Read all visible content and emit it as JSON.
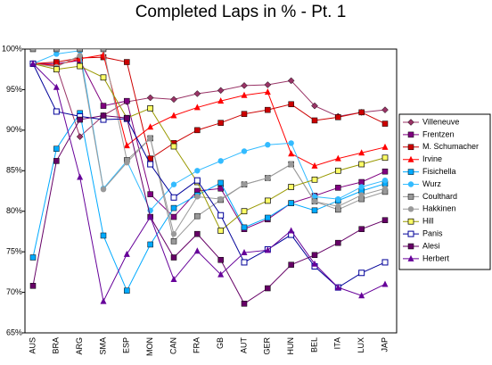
{
  "chart_data": {
    "type": "line",
    "title": "Completed Laps in % - Pt. 1",
    "categories": [
      "AUS",
      "BRA",
      "ARG",
      "SMA",
      "ESP",
      "MON",
      "CAN",
      "FRA",
      "GB",
      "AUT",
      "GER",
      "HUN",
      "BEL",
      "ITA",
      "LUX",
      "JAP"
    ],
    "ylim": [
      65,
      100
    ],
    "yticks": [
      {
        "value": 65,
        "label": "65%"
      },
      {
        "value": 70,
        "label": "70%"
      },
      {
        "value": 75,
        "label": "75%"
      },
      {
        "value": 80,
        "label": "80%"
      },
      {
        "value": 85,
        "label": "85%"
      },
      {
        "value": 90,
        "label": "90%"
      },
      {
        "value": 95,
        "label": "95%"
      },
      {
        "value": 100,
        "label": "100%"
      }
    ],
    "grid": false,
    "legend": "right",
    "series": [
      {
        "name": "Villeneuve",
        "color": "#993366",
        "marker": "diamond",
        "values": [
          98.2,
          97.9,
          89.2,
          91.8,
          93.5,
          94.0,
          93.8,
          94.5,
          94.9,
          95.5,
          95.6,
          96.1,
          93.0,
          91.7,
          92.2,
          92.5
        ]
      },
      {
        "name": "Frentzen",
        "color": "#800080",
        "marker": "square",
        "values": [
          98.2,
          98.2,
          98.6,
          93.0,
          93.6,
          82.1,
          79.3,
          82.5,
          82.8,
          77.8,
          79.0,
          81.0,
          81.9,
          82.9,
          83.6,
          84.9
        ]
      },
      {
        "name": "M. Schumacher",
        "color": "#cc0000",
        "marker": "square",
        "values": [
          98.2,
          98.4,
          98.9,
          99.0,
          98.4,
          86.5,
          88.4,
          90.0,
          90.9,
          92.0,
          92.5,
          93.2,
          91.2,
          91.6,
          92.2,
          90.8
        ]
      },
      {
        "name": "Irvine",
        "color": "#ff0000",
        "marker": "triangle",
        "values": [
          98.2,
          98.0,
          98.8,
          99.3,
          88.1,
          90.4,
          91.8,
          92.8,
          93.6,
          94.3,
          94.7,
          87.1,
          85.6,
          86.5,
          87.2,
          87.9
        ]
      },
      {
        "name": "Fisichella",
        "color": "#00aaff",
        "marker": "square",
        "values": [
          74.3,
          87.7,
          92.1,
          77.0,
          70.2,
          75.9,
          80.4,
          82.0,
          83.5,
          78.0,
          79.2,
          81.0,
          80.1,
          81.3,
          82.5,
          83.4
        ]
      },
      {
        "name": "Wurz",
        "color": "#33bbff",
        "marker": "circle",
        "values": [
          98.2,
          99.4,
          99.8,
          82.8,
          86.2,
          80.1,
          83.3,
          85.0,
          86.2,
          87.4,
          88.2,
          88.4,
          81.8,
          81.5,
          83.0,
          83.8
        ]
      },
      {
        "name": "Coulthard",
        "color": "#999999",
        "marker": "square",
        "values": [
          100,
          100,
          100,
          100,
          86.3,
          89.0,
          76.3,
          79.4,
          81.4,
          83.3,
          84.1,
          85.8,
          81.2,
          80.2,
          81.5,
          82.4
        ]
      },
      {
        "name": "Hakkinen",
        "color": "#999999",
        "marker": "circle",
        "values": [
          98.2,
          97.8,
          99.2,
          82.7,
          86.0,
          89.0,
          77.2,
          81.8,
          81.5,
          83.3,
          84.1,
          85.8,
          81.2,
          80.6,
          82.0,
          82.8
        ]
      },
      {
        "name": "Hill",
        "color": "#999900",
        "marker": "square-yellow",
        "values": [
          98.2,
          97.5,
          97.9,
          96.5,
          91.5,
          92.7,
          88.0,
          83.6,
          77.6,
          80.0,
          81.3,
          83.0,
          83.9,
          85.0,
          85.8,
          86.6
        ]
      },
      {
        "name": "Panis",
        "color": "#000099",
        "marker": "square-open",
        "values": [
          98.2,
          92.3,
          91.7,
          91.3,
          91.4,
          85.8,
          81.7,
          83.8,
          79.5,
          73.7,
          75.3,
          77.1,
          73.2,
          70.6,
          72.4,
          73.7
        ]
      },
      {
        "name": "Alesi",
        "color": "#660066",
        "marker": "square",
        "values": [
          70.8,
          86.2,
          91.3,
          91.8,
          91.5,
          79.3,
          74.3,
          77.2,
          74.0,
          68.6,
          70.5,
          73.4,
          74.6,
          76.1,
          77.8,
          78.9
        ]
      },
      {
        "name": "Herbert",
        "color": "#660099",
        "marker": "triangle",
        "values": [
          98.2,
          95.3,
          84.2,
          68.9,
          74.7,
          79.3,
          71.6,
          75.1,
          72.2,
          74.9,
          75.2,
          77.6,
          73.5,
          70.6,
          69.6,
          71.0
        ]
      }
    ]
  }
}
